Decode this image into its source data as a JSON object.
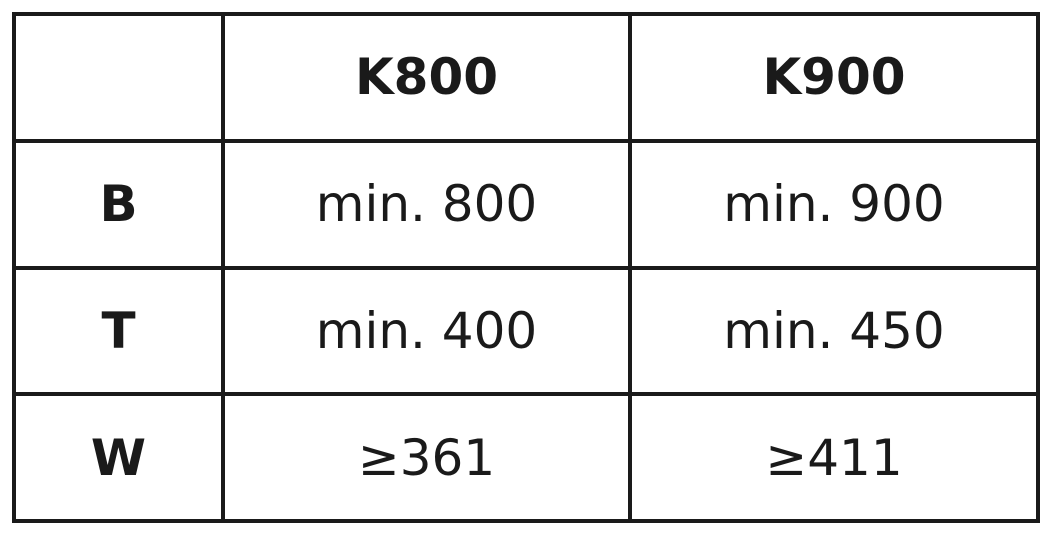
{
  "columns": [
    "",
    "K800",
    "K900"
  ],
  "rows": [
    {
      "label": "B",
      "values": [
        "min. 800",
        "min. 900"
      ]
    },
    {
      "label": "T",
      "values": [
        "min. 400",
        "min. 450"
      ]
    },
    {
      "label": "W",
      "values": [
        "≥361",
        "≥411"
      ]
    }
  ]
}
